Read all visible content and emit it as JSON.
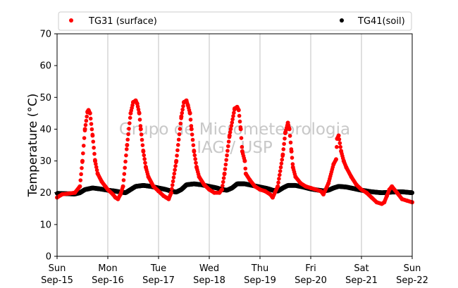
{
  "chart_data": {
    "type": "scatter",
    "title": "",
    "xlabel": "",
    "ylabel": "Temperature (°C)",
    "ylim": [
      0,
      70
    ],
    "yticks": [
      0,
      10,
      20,
      30,
      40,
      50,
      60,
      70
    ],
    "xlim": [
      0,
      7
    ],
    "x_unit": "days since Sun Sep-15 00:00",
    "x_ticks": [
      {
        "day": "Sun",
        "date": "Sep-15"
      },
      {
        "day": "Mon",
        "date": "Sep-16"
      },
      {
        "day": "Tue",
        "date": "Sep-17"
      },
      {
        "day": "Wed",
        "date": "Sep-18"
      },
      {
        "day": "Thu",
        "date": "Sep-19"
      },
      {
        "day": "Fri",
        "date": "Sep-20"
      },
      {
        "day": "Sat",
        "date": "Sep-21"
      },
      {
        "day": "Sun",
        "date": "Sep-22"
      }
    ],
    "grid": "vertical",
    "legend_position": "top",
    "watermark": [
      "Grupo de Micrometeorologia",
      "IAG / USP"
    ],
    "series": [
      {
        "name": "TG31 (surface)",
        "color": "#ff0000",
        "x": [
          0.0,
          0.1,
          0.25,
          0.35,
          0.45,
          0.5,
          0.55,
          0.6,
          0.62,
          0.65,
          0.7,
          0.75,
          0.8,
          0.88,
          0.95,
          1.0,
          1.1,
          1.15,
          1.2,
          1.25,
          1.3,
          1.38,
          1.45,
          1.5,
          1.55,
          1.58,
          1.62,
          1.65,
          1.7,
          1.75,
          1.8,
          1.9,
          2.0,
          2.1,
          2.15,
          2.2,
          2.25,
          2.35,
          2.45,
          2.5,
          2.55,
          2.58,
          2.62,
          2.65,
          2.7,
          2.75,
          2.8,
          2.9,
          3.0,
          3.1,
          3.2,
          3.25,
          3.3,
          3.4,
          3.5,
          3.55,
          3.58,
          3.62,
          3.65,
          3.7,
          3.72,
          3.8,
          3.9,
          4.0,
          4.1,
          4.2,
          4.25,
          4.35,
          4.45,
          4.5,
          4.55,
          4.58,
          4.62,
          4.65,
          4.7,
          4.8,
          4.9,
          5.0,
          5.1,
          5.2,
          5.25,
          5.35,
          5.45,
          5.5,
          5.52,
          5.55,
          5.6,
          5.65,
          5.7,
          5.8,
          5.9,
          6.0,
          6.1,
          6.2,
          6.3,
          6.4,
          6.45,
          6.5,
          6.55,
          6.6,
          6.7,
          6.8,
          6.9,
          7.0
        ],
        "y": [
          18.5,
          19.5,
          19.8,
          20.0,
          22.0,
          30.0,
          40.0,
          45.5,
          46.0,
          45.0,
          38.0,
          30.0,
          26.0,
          23.5,
          22.0,
          21.0,
          19.5,
          18.5,
          18.0,
          19.5,
          22.0,
          35.0,
          45.0,
          48.5,
          49.0,
          48.0,
          45.0,
          40.0,
          33.0,
          28.0,
          25.0,
          22.0,
          20.5,
          19.0,
          18.5,
          18.0,
          20.0,
          30.0,
          44.0,
          48.5,
          49.0,
          47.5,
          45.0,
          40.0,
          33.0,
          28.0,
          25.0,
          22.5,
          21.0,
          20.0,
          20.0,
          21.0,
          26.0,
          38.0,
          46.5,
          47.0,
          46.0,
          40.0,
          33.0,
          30.0,
          26.0,
          24.0,
          22.0,
          21.0,
          20.5,
          19.5,
          18.5,
          22.0,
          32.0,
          39.0,
          42.0,
          40.0,
          33.0,
          28.0,
          25.0,
          23.0,
          22.0,
          21.5,
          21.0,
          20.5,
          19.5,
          23.0,
          29.0,
          30.5,
          37.0,
          38.0,
          33.0,
          30.0,
          28.0,
          25.0,
          22.5,
          21.0,
          20.0,
          18.5,
          17.0,
          16.5,
          17.0,
          19.0,
          21.0,
          22.0,
          20.0,
          18.0,
          17.5,
          17.0
        ]
      },
      {
        "name": "TG41(soil)",
        "color": "#000000",
        "x": [
          0.0,
          0.2,
          0.35,
          0.45,
          0.55,
          0.7,
          0.85,
          1.0,
          1.15,
          1.25,
          1.35,
          1.45,
          1.55,
          1.7,
          1.85,
          2.0,
          2.15,
          2.25,
          2.35,
          2.45,
          2.55,
          2.7,
          2.85,
          3.0,
          3.15,
          3.25,
          3.35,
          3.45,
          3.55,
          3.7,
          3.85,
          4.0,
          4.15,
          4.25,
          4.35,
          4.45,
          4.55,
          4.7,
          4.85,
          5.0,
          5.15,
          5.25,
          5.35,
          5.45,
          5.55,
          5.7,
          5.85,
          6.0,
          6.2,
          6.4,
          6.6,
          6.8,
          7.0
        ],
        "y": [
          19.8,
          19.7,
          19.6,
          20.0,
          21.0,
          21.5,
          21.2,
          20.8,
          20.5,
          20.2,
          20.0,
          21.0,
          22.0,
          22.3,
          22.0,
          21.5,
          21.0,
          20.5,
          20.2,
          21.0,
          22.5,
          22.8,
          22.5,
          22.0,
          21.5,
          21.0,
          20.8,
          21.5,
          22.8,
          22.8,
          22.3,
          21.8,
          21.3,
          20.8,
          20.5,
          21.5,
          22.3,
          22.3,
          21.8,
          21.2,
          20.8,
          20.6,
          20.8,
          21.5,
          22.0,
          21.8,
          21.3,
          20.8,
          20.3,
          20.0,
          20.2,
          20.3,
          20.0
        ]
      }
    ]
  }
}
